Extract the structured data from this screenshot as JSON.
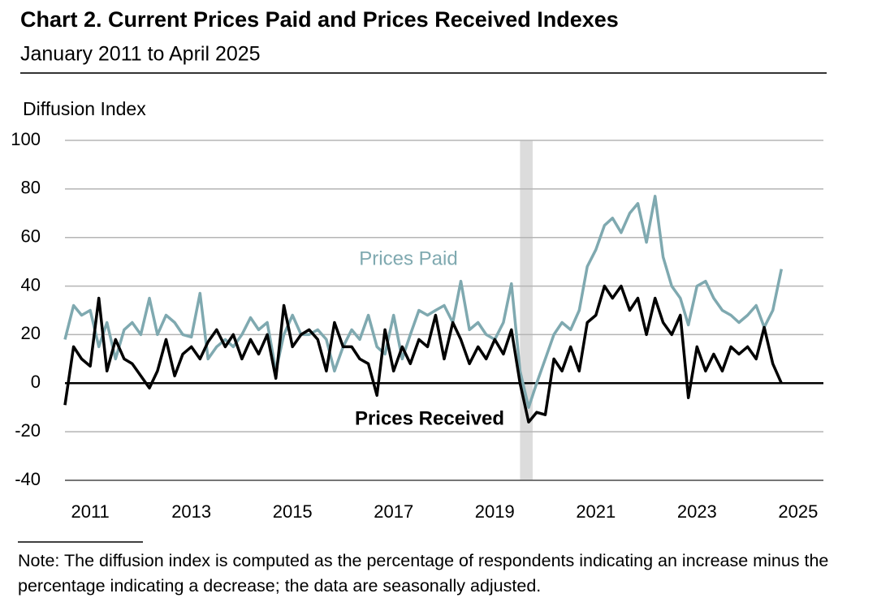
{
  "chart_data": {
    "type": "line",
    "title": "Chart 2. Current Prices Paid and Prices Received Indexes",
    "subtitle": "January 2011 to April 2025",
    "y_label": "Diffusion Index",
    "note": "Note: The diffusion index is computed as the percentage of respondents indicating an increase minus the percentage indicating a decrease; the data are seasonally adjusted.",
    "shading": [
      2020.0,
      2020.25
    ],
    "xlim": [
      2011,
      2026
    ],
    "xticks": [
      {
        "value": 2011.5,
        "label": "2011"
      },
      {
        "value": 2013.5,
        "label": "2013"
      },
      {
        "value": 2015.5,
        "label": "2015"
      },
      {
        "value": 2017.5,
        "label": "2017"
      },
      {
        "value": 2019.5,
        "label": "2019"
      },
      {
        "value": 2021.5,
        "label": "2021"
      },
      {
        "value": 2023.5,
        "label": "2023"
      },
      {
        "value": 2025.5,
        "label": "2025"
      }
    ],
    "ylim": [
      -40,
      100
    ],
    "yticks": [
      -40,
      -20,
      0,
      20,
      40,
      60,
      80,
      100
    ],
    "grid": true,
    "x": [
      2011,
      2011.17,
      2011.33,
      2011.5,
      2011.67,
      2011.83,
      2012,
      2012.17,
      2012.33,
      2012.5,
      2012.67,
      2012.83,
      2013,
      2013.17,
      2013.33,
      2013.5,
      2013.67,
      2013.83,
      2014,
      2014.17,
      2014.33,
      2014.5,
      2014.67,
      2014.83,
      2015,
      2015.17,
      2015.33,
      2015.5,
      2015.67,
      2015.83,
      2016,
      2016.17,
      2016.33,
      2016.5,
      2016.67,
      2016.83,
      2017,
      2017.17,
      2017.33,
      2017.5,
      2017.67,
      2017.83,
      2018,
      2018.17,
      2018.33,
      2018.5,
      2018.67,
      2018.83,
      2019,
      2019.17,
      2019.33,
      2019.5,
      2019.67,
      2019.83,
      2020,
      2020.17,
      2020.33,
      2020.5,
      2020.67,
      2020.83,
      2021,
      2021.17,
      2021.33,
      2021.5,
      2021.67,
      2021.83,
      2022,
      2022.17,
      2022.33,
      2022.5,
      2022.67,
      2022.83,
      2023,
      2023.17,
      2023.33,
      2023.5,
      2023.67,
      2023.83,
      2024,
      2024.17,
      2024.33,
      2024.5,
      2024.67,
      2024.83,
      2025,
      2025.17
    ],
    "series": [
      {
        "name": "Prices Paid",
        "color": "#7fa9b0",
        "values": [
          18,
          32,
          28,
          30,
          15,
          25,
          10,
          22,
          25,
          20,
          35,
          20,
          28,
          25,
          20,
          19,
          37,
          10,
          15,
          18,
          15,
          20,
          27,
          22,
          25,
          5,
          20,
          28,
          20,
          20,
          22,
          18,
          5,
          15,
          22,
          18,
          28,
          15,
          12,
          28,
          10,
          20,
          30,
          28,
          30,
          32,
          25,
          42,
          22,
          25,
          20,
          18,
          25,
          41,
          5,
          -10,
          0,
          10,
          20,
          25,
          22,
          30,
          48,
          55,
          65,
          68,
          62,
          70,
          74,
          58,
          77,
          52,
          40,
          35,
          24,
          40,
          42,
          35,
          30,
          28,
          25,
          28,
          32,
          23,
          30,
          47
        ]
      },
      {
        "name": "Prices Received",
        "color": "#000000",
        "values": [
          -9,
          15,
          10,
          7,
          35,
          5,
          18,
          10,
          8,
          3,
          -2,
          5,
          18,
          3,
          12,
          15,
          10,
          17,
          22,
          15,
          20,
          10,
          18,
          12,
          20,
          2,
          32,
          15,
          20,
          22,
          18,
          5,
          25,
          15,
          15,
          10,
          8,
          -5,
          22,
          5,
          15,
          8,
          18,
          15,
          28,
          10,
          25,
          18,
          8,
          15,
          10,
          18,
          12,
          22,
          0,
          -16,
          -12,
          -13,
          10,
          5,
          15,
          5,
          25,
          28,
          40,
          35,
          40,
          30,
          35,
          20,
          35,
          25,
          20,
          28,
          -6,
          15,
          5,
          12,
          5,
          15,
          12,
          15,
          10,
          23,
          8,
          0
        ]
      }
    ]
  }
}
